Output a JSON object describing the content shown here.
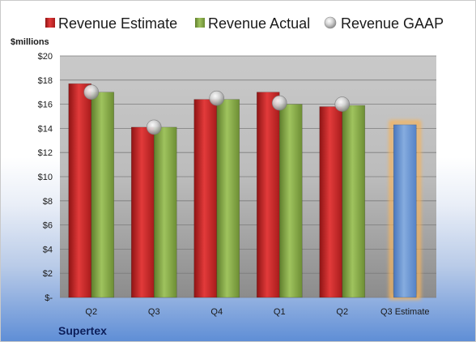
{
  "chart_data": {
    "type": "bar",
    "ylabel": "$millions",
    "categories": [
      "Q2",
      "Q3",
      "Q4",
      "Q1",
      "Q2",
      "Q3 Estimate"
    ],
    "series": [
      {
        "name": "Revenue Estimate",
        "kind": "bar",
        "color": "#d42a2a",
        "values": [
          17.7,
          14.1,
          16.4,
          17.0,
          15.8,
          null
        ]
      },
      {
        "name": "Revenue Actual",
        "kind": "bar",
        "color": "#8db14f",
        "values": [
          17.0,
          14.1,
          16.4,
          16.0,
          15.9,
          null
        ]
      },
      {
        "name": "Revenue GAAP",
        "kind": "marker",
        "color": "#b9b9b9",
        "values": [
          17.0,
          14.1,
          16.5,
          16.1,
          16.0,
          null
        ]
      },
      {
        "name": "",
        "kind": "bar",
        "color": "#6f9bd8",
        "highlight": "#f5b45d",
        "values": [
          null,
          null,
          null,
          null,
          null,
          14.3
        ]
      }
    ],
    "yticks": [
      "$-",
      "$2",
      "$4",
      "$6",
      "$8",
      "$10",
      "$12",
      "$14",
      "$16",
      "$18",
      "$20"
    ],
    "ylim": [
      0,
      20
    ],
    "grid": true,
    "legend_position": "top",
    "company": "Supertex"
  }
}
